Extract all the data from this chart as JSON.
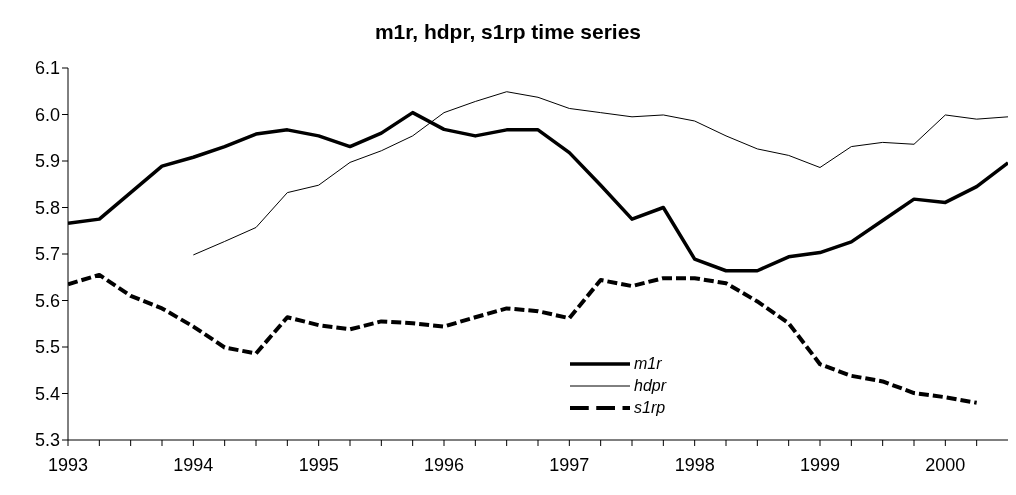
{
  "chart_data": {
    "type": "line",
    "title": "m1r, hdpr, s1rp time series",
    "xlim": [
      1993,
      2000.5
    ],
    "xticks": [
      1993,
      {
        "value": 1993.25,
        "label": null
      },
      {
        "value": 1993.5,
        "label": null
      },
      {
        "value": 1993.75,
        "label": null
      },
      1994,
      {
        "value": 1994.25,
        "label": null
      },
      {
        "value": 1994.5,
        "label": null
      },
      {
        "value": 1994.75,
        "label": null
      },
      1995,
      {
        "value": 1995.25,
        "label": null
      },
      {
        "value": 1995.5,
        "label": null
      },
      {
        "value": 1995.75,
        "label": null
      },
      1996,
      {
        "value": 1996.25,
        "label": null
      },
      {
        "value": 1996.5,
        "label": null
      },
      {
        "value": 1996.75,
        "label": null
      },
      1997,
      {
        "value": 1997.25,
        "label": null
      },
      {
        "value": 1997.5,
        "label": null
      },
      {
        "value": 1997.75,
        "label": null
      },
      1998,
      {
        "value": 1998.25,
        "label": null
      },
      {
        "value": 1998.5,
        "label": null
      },
      {
        "value": 1998.75,
        "label": null
      },
      1999,
      {
        "value": 1999.25,
        "label": null
      },
      {
        "value": 1999.5,
        "label": null
      },
      {
        "value": 1999.75,
        "label": null
      },
      2000,
      {
        "value": 2000.25,
        "label": null
      }
    ],
    "ylim": [
      5.3,
      6.1
    ],
    "yticks": [
      {
        "value": 5.3,
        "label": "5.3"
      },
      {
        "value": 5.4,
        "label": "5.4"
      },
      {
        "value": 5.5,
        "label": "5.5"
      },
      {
        "value": 5.6,
        "label": "5.6"
      },
      {
        "value": 5.7,
        "label": "5.7"
      },
      {
        "value": 5.8,
        "label": "5.8"
      },
      {
        "value": 5.9,
        "label": "5.9"
      },
      {
        "value": 6.0,
        "label": "6.0"
      },
      {
        "value": 6.1,
        "label": "6.1"
      }
    ],
    "grid": false,
    "legend": "bottom right",
    "marker": "none",
    "series": [
      {
        "name": "m1r",
        "color": "#000000",
        "line_style": "solid",
        "x": [
          1993,
          1993.25,
          1993.5,
          1993.75,
          1994,
          1994.25,
          1994.5,
          1994.75,
          1995,
          1995.25,
          1995.5,
          1995.75,
          1996,
          1996.25,
          1996.5,
          1996.75,
          1997,
          1997.25,
          1997.5,
          1997.75,
          1998,
          1998.25,
          1998.5,
          1998.75,
          1999,
          1999.25,
          1999.5,
          1999.75,
          2000,
          2000.25,
          2000.5
        ],
        "values": [
          5.766,
          5.775,
          5.832,
          5.889,
          5.908,
          5.931,
          5.958,
          5.967,
          5.954,
          5.931,
          5.96,
          6.004,
          5.968,
          5.954,
          5.967,
          5.967,
          5.918,
          5.848,
          5.775,
          5.8,
          5.689,
          5.664,
          5.664,
          5.694,
          5.703,
          5.726,
          5.772,
          5.818,
          5.811,
          5.845,
          5.896
        ]
      },
      {
        "name": "hdpr",
        "color": "#000000",
        "line_style": "solid",
        "x": [
          1994,
          1994.25,
          1994.5,
          1994.75,
          1995,
          1995.25,
          1995.5,
          1995.75,
          1996,
          1996.25,
          1996.5,
          1996.75,
          1997,
          1997.25,
          1997.5,
          1997.75,
          1998,
          1998.25,
          1998.5,
          1998.75,
          1999,
          1999.25,
          1999.5,
          1999.75,
          2000,
          2000.25,
          2000.5
        ],
        "values": [
          5.698,
          5.727,
          5.757,
          5.832,
          5.848,
          5.897,
          5.922,
          5.954,
          6.004,
          6.028,
          6.049,
          6.037,
          6.013,
          6.004,
          5.995,
          5.999,
          5.986,
          5.954,
          5.926,
          5.912,
          5.886,
          5.931,
          5.94,
          5.936,
          5.999,
          5.99,
          5.995
        ]
      },
      {
        "name": "s1rp",
        "color": "#000000",
        "line_style": "dashed",
        "x": [
          1993,
          1993.25,
          1993.5,
          1993.75,
          1994,
          1994.25,
          1994.5,
          1994.75,
          1995,
          1995.25,
          1995.5,
          1995.75,
          1996,
          1996.25,
          1996.5,
          1996.75,
          1997,
          1997.25,
          1997.5,
          1997.75,
          1998,
          1998.25,
          1998.5,
          1998.75,
          1999,
          1999.25,
          1999.5,
          1999.75,
          2000,
          2000.25
        ],
        "values": [
          5.635,
          5.655,
          5.61,
          5.583,
          5.544,
          5.499,
          5.486,
          5.564,
          5.547,
          5.538,
          5.555,
          5.551,
          5.544,
          5.564,
          5.583,
          5.577,
          5.562,
          5.644,
          5.631,
          5.648,
          5.648,
          5.637,
          5.598,
          5.551,
          5.463,
          5.438,
          5.426,
          5.401,
          5.392,
          5.38
        ]
      }
    ]
  }
}
